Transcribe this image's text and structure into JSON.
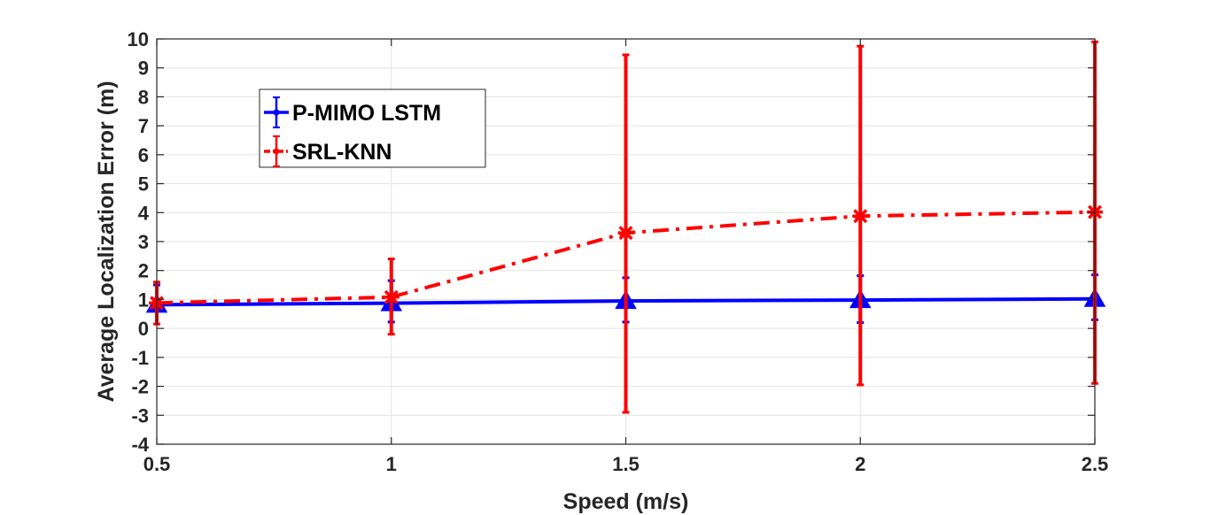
{
  "chart_data": {
    "type": "line",
    "title": "",
    "xlabel": "Speed (m/s)",
    "ylabel": "Average Localization Error (m)",
    "xlim": [
      0.5,
      2.5
    ],
    "ylim": [
      -4,
      10
    ],
    "x_ticks": [
      0.5,
      1,
      1.5,
      2,
      2.5
    ],
    "x_tick_labels": [
      "0.5",
      "1",
      "1.5",
      "2",
      "2.5"
    ],
    "y_ticks": [
      -4,
      -3,
      -2,
      -1,
      0,
      1,
      2,
      3,
      4,
      5,
      6,
      7,
      8,
      9,
      10
    ],
    "y_tick_labels": [
      "-4",
      "-3",
      "-2",
      "-1",
      "0",
      "1",
      "2",
      "3",
      "4",
      "5",
      "6",
      "7",
      "8",
      "9",
      "10"
    ],
    "grid": true,
    "legend_position": "top-left",
    "x": [
      0.5,
      1,
      1.5,
      2,
      2.5
    ],
    "series": [
      {
        "name": "P-MIMO LSTM",
        "color": "#0000ff",
        "line_style": "solid",
        "marker": "triangle",
        "values": [
          0.82,
          0.87,
          0.95,
          0.98,
          1.02
        ],
        "error_low": [
          0.82,
          0.22,
          0.22,
          0.2,
          0.3
        ],
        "error_high": [
          1.5,
          1.65,
          1.75,
          1.82,
          1.85
        ]
      },
      {
        "name": "SRL-KNN",
        "color": "#ff0000",
        "line_style": "dash-dot",
        "marker": "asterisk",
        "values": [
          0.88,
          1.08,
          3.3,
          3.88,
          4.02
        ],
        "error_low": [
          0.15,
          -0.2,
          -2.9,
          -1.95,
          -1.9
        ],
        "error_high": [
          1.6,
          2.4,
          9.45,
          9.75,
          9.9
        ]
      }
    ]
  }
}
